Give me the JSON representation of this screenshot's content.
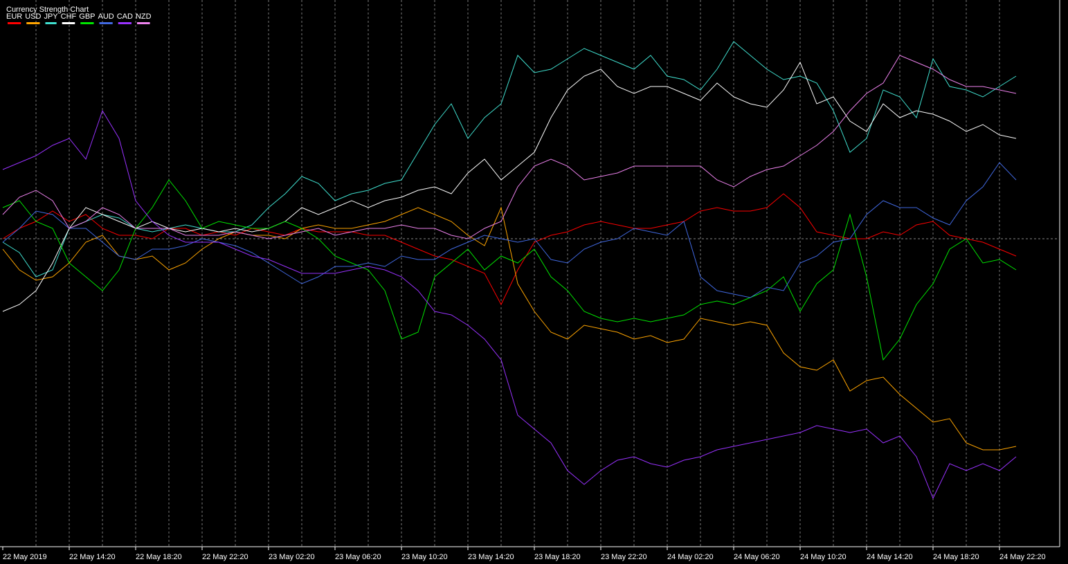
{
  "chart_data": {
    "type": "line",
    "title": "Currency Strength Chart",
    "categories": [
      "22 May 2019",
      null,
      null,
      null,
      "22 May 14:20",
      null,
      null,
      null,
      "22 May 18:20",
      null,
      null,
      null,
      "22 May 22:20",
      null,
      null,
      null,
      "23 May 02:20",
      null,
      null,
      null,
      "23 May 06:20",
      null,
      null,
      null,
      "23 May 10:20",
      null,
      null,
      null,
      "23 May 14:20",
      null,
      null,
      null,
      "23 May 18:20",
      null,
      null,
      null,
      "23 May 22:20",
      null,
      null,
      null,
      "24 May 02:20",
      null,
      null,
      null,
      "24 May 06:20",
      null,
      null,
      null,
      "24 May 10:20",
      null,
      null,
      null,
      "24 May 14:20",
      null,
      null,
      null,
      "24 May 18:20",
      null,
      null,
      null,
      "24 May 22:20",
      null
    ],
    "ylim": [
      -445,
      345
    ],
    "zero_line": true,
    "grid": true,
    "series": [
      {
        "name": "EUR",
        "color": "#ff0000",
        "values": [
          0,
          15,
          25,
          40,
          25,
          35,
          15,
          5,
          5,
          0,
          15,
          15,
          5,
          10,
          5,
          15,
          10,
          5,
          15,
          10,
          10,
          10,
          5,
          5,
          -5,
          -15,
          -25,
          -30,
          -40,
          -50,
          -95,
          -45,
          -5,
          5,
          10,
          20,
          25,
          20,
          15,
          15,
          20,
          25,
          40,
          45,
          40,
          40,
          45,
          65,
          45,
          10,
          5,
          0,
          0,
          10,
          5,
          20,
          25,
          5,
          0,
          -5,
          -15,
          -25
        ]
      },
      {
        "name": "USD",
        "color": "#ffa500",
        "values": [
          -15,
          -45,
          -60,
          -55,
          -35,
          -5,
          5,
          -25,
          -30,
          -25,
          -45,
          -35,
          -15,
          0,
          10,
          5,
          5,
          0,
          15,
          20,
          15,
          15,
          20,
          25,
          35,
          45,
          35,
          25,
          5,
          -10,
          45,
          -65,
          -105,
          -135,
          -145,
          -125,
          -130,
          -135,
          -145,
          -140,
          -150,
          -145,
          -115,
          -120,
          -125,
          -120,
          -125,
          -165,
          -185,
          -190,
          -175,
          -220,
          -205,
          -200,
          -225,
          -245,
          -265,
          -260,
          -295,
          -305,
          -305,
          -300
        ]
      },
      {
        "name": "JPY",
        "color": "#40e0d0",
        "values": [
          -5,
          -20,
          -55,
          -45,
          15,
          25,
          35,
          30,
          15,
          10,
          15,
          20,
          15,
          10,
          10,
          20,
          45,
          65,
          90,
          80,
          55,
          65,
          70,
          80,
          85,
          125,
          165,
          195,
          145,
          175,
          195,
          265,
          240,
          245,
          260,
          275,
          265,
          255,
          245,
          265,
          235,
          230,
          215,
          245,
          285,
          265,
          245,
          230,
          235,
          225,
          185,
          125,
          145,
          215,
          205,
          175,
          260,
          220,
          215,
          205,
          220,
          235
        ]
      },
      {
        "name": "CHF",
        "color": "#ffffff",
        "values": [
          -105,
          -95,
          -75,
          -35,
          15,
          45,
          35,
          25,
          15,
          25,
          15,
          10,
          15,
          10,
          15,
          10,
          15,
          25,
          45,
          35,
          45,
          55,
          45,
          55,
          60,
          70,
          75,
          65,
          95,
          115,
          85,
          105,
          125,
          175,
          215,
          235,
          245,
          220,
          210,
          220,
          220,
          210,
          200,
          225,
          205,
          195,
          190,
          215,
          255,
          195,
          205,
          170,
          155,
          195,
          175,
          185,
          180,
          170,
          155,
          165,
          150,
          145
        ]
      },
      {
        "name": "GBP",
        "color": "#00e600",
        "values": [
          45,
          55,
          25,
          15,
          -35,
          -55,
          -75,
          -45,
          15,
          45,
          85,
          55,
          15,
          25,
          20,
          15,
          15,
          25,
          15,
          0,
          -25,
          -35,
          -45,
          -75,
          -145,
          -135,
          -55,
          -35,
          -15,
          -45,
          -25,
          -35,
          -15,
          -55,
          -75,
          -105,
          -115,
          -120,
          -115,
          -120,
          -115,
          -110,
          -95,
          -90,
          -95,
          -85,
          -75,
          -55,
          -105,
          -65,
          -45,
          35,
          -55,
          -175,
          -145,
          -95,
          -65,
          -15,
          0,
          -35,
          -30,
          -45
        ]
      },
      {
        "name": "AUD",
        "color": "#4169e1",
        "values": [
          -5,
          15,
          40,
          35,
          15,
          15,
          -5,
          -25,
          -30,
          -15,
          -15,
          -10,
          0,
          -5,
          -10,
          -20,
          -35,
          -50,
          -65,
          -55,
          -40,
          -40,
          -35,
          -40,
          -25,
          -30,
          -30,
          -15,
          -5,
          5,
          0,
          -5,
          0,
          -30,
          -35,
          -15,
          -5,
          0,
          15,
          10,
          5,
          25,
          -55,
          -75,
          -80,
          -85,
          -70,
          -75,
          -35,
          -25,
          -5,
          0,
          35,
          55,
          45,
          45,
          30,
          20,
          55,
          75,
          110,
          85
        ]
      },
      {
        "name": "CAD",
        "color": "#9932ff",
        "values": [
          100,
          110,
          120,
          135,
          145,
          115,
          185,
          145,
          55,
          25,
          5,
          -5,
          -5,
          -5,
          -15,
          -25,
          -30,
          -40,
          -50,
          -50,
          -50,
          -45,
          -40,
          -45,
          -55,
          -75,
          -105,
          -110,
          -125,
          -145,
          -175,
          -255,
          -275,
          -295,
          -335,
          -355,
          -335,
          -320,
          -315,
          -325,
          -330,
          -320,
          -315,
          -305,
          -300,
          -295,
          -290,
          -285,
          -280,
          -270,
          -275,
          -280,
          -275,
          -295,
          -285,
          -315,
          -375,
          -325,
          -335,
          -325,
          -335,
          -315
        ]
      },
      {
        "name": "NZD",
        "color": "#ee82ee",
        "values": [
          35,
          60,
          70,
          55,
          15,
          25,
          45,
          35,
          15,
          15,
          15,
          5,
          5,
          5,
          10,
          5,
          0,
          5,
          10,
          15,
          5,
          10,
          15,
          15,
          20,
          15,
          15,
          5,
          0,
          15,
          25,
          75,
          105,
          115,
          105,
          85,
          90,
          95,
          105,
          105,
          105,
          105,
          105,
          85,
          75,
          90,
          100,
          105,
          120,
          135,
          155,
          185,
          210,
          225,
          265,
          255,
          245,
          230,
          220,
          220,
          215,
          210
        ]
      }
    ]
  }
}
